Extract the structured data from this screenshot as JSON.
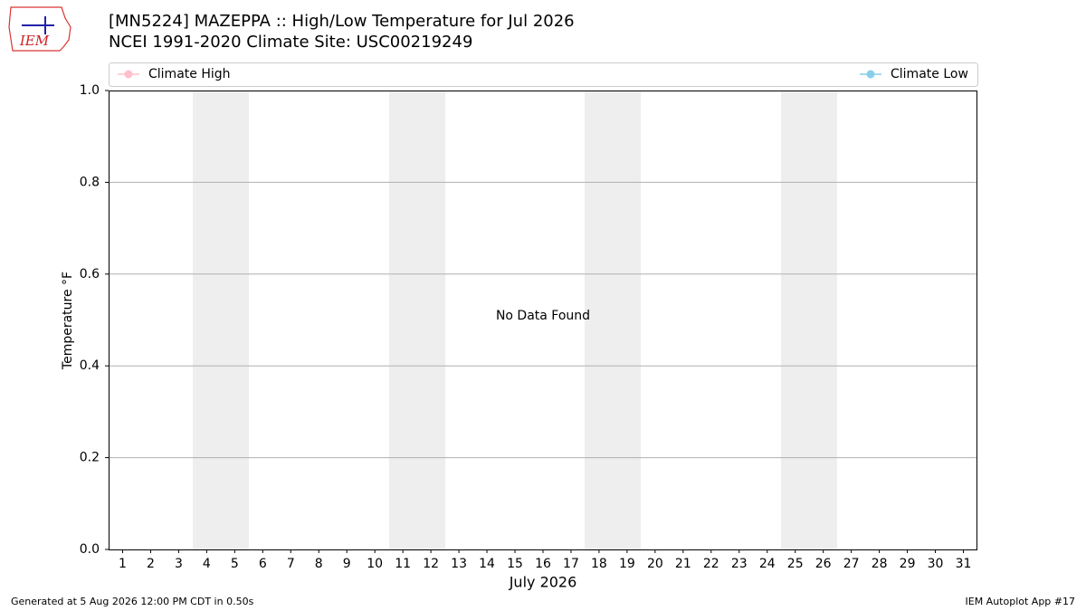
{
  "logo_text": "IEM",
  "footer_left": "Generated at 5 Aug 2026 12:00 PM CDT in 0.50s",
  "footer_right": "IEM Autoplot App #17",
  "chart_data": {
    "type": "line",
    "title": "[MN5224] MAZEPPA :: High/Low Temperature for Jul 2026",
    "subtitle": "NCEI 1991-2020 Climate Site: USC00219249",
    "x_label": "July 2026",
    "y_label": "Temperature °F",
    "annotation": "No Data Found",
    "x": [
      1,
      2,
      3,
      4,
      5,
      6,
      7,
      8,
      9,
      10,
      11,
      12,
      13,
      14,
      15,
      16,
      17,
      18,
      19,
      20,
      21,
      22,
      23,
      24,
      25,
      26,
      27,
      28,
      29,
      30,
      31
    ],
    "series": [
      {
        "name": "Climate High",
        "color": "#ffc0cb",
        "values": [
          null,
          null,
          null,
          null,
          null,
          null,
          null,
          null,
          null,
          null,
          null,
          null,
          null,
          null,
          null,
          null,
          null,
          null,
          null,
          null,
          null,
          null,
          null,
          null,
          null,
          null,
          null,
          null,
          null,
          null,
          null
        ]
      },
      {
        "name": "Climate Low",
        "color": "#87ceeb",
        "values": [
          null,
          null,
          null,
          null,
          null,
          null,
          null,
          null,
          null,
          null,
          null,
          null,
          null,
          null,
          null,
          null,
          null,
          null,
          null,
          null,
          null,
          null,
          null,
          null,
          null,
          null,
          null,
          null,
          null,
          null,
          null
        ]
      }
    ],
    "xlim": [
      0.5,
      31.5
    ],
    "xticks": [
      1,
      2,
      3,
      4,
      5,
      6,
      7,
      8,
      9,
      10,
      11,
      12,
      13,
      14,
      15,
      16,
      17,
      18,
      19,
      20,
      21,
      22,
      23,
      24,
      25,
      26,
      27,
      28,
      29,
      30,
      31
    ],
    "ylim": [
      0,
      1
    ],
    "yticks": [
      {
        "value": 0,
        "label": "0.0"
      },
      {
        "value": 0.2,
        "label": "0.2"
      },
      {
        "value": 0.4,
        "label": "0.4"
      },
      {
        "value": 0.6,
        "label": "0.6"
      },
      {
        "value": 0.8,
        "label": "0.8"
      },
      {
        "value": 1,
        "label": "1.0"
      }
    ],
    "grid": true
  }
}
